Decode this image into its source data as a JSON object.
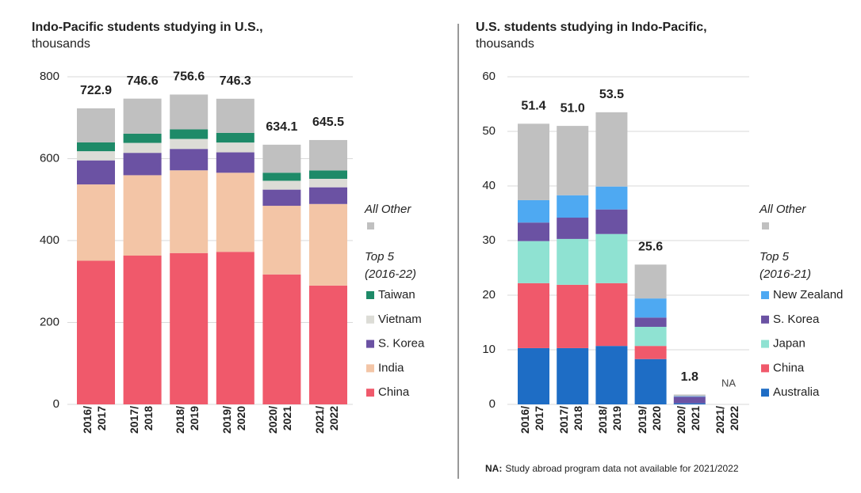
{
  "chart_data": [
    {
      "type": "bar",
      "stacked": true,
      "grid": true,
      "title": "Indo-Pacific students studying in U.S.,",
      "subtitle": "thousands",
      "categories": [
        "2016/\n2017",
        "2017/\n2018",
        "2018/\n2019",
        "2019/\n2020",
        "2020/\n2021",
        "2021/\n2022"
      ],
      "ylim": [
        0,
        800
      ],
      "yticks": [
        0,
        200,
        400,
        600,
        800
      ],
      "legend_title": [
        "Top 5",
        "(2016-22)"
      ],
      "series": [
        {
          "name": "China",
          "color": "#f0596b",
          "values": [
            350.8,
            363.3,
            369.5,
            372.5,
            317.3,
            290.1
          ]
        },
        {
          "name": "India",
          "color": "#f3c5a6",
          "values": [
            186.3,
            196.3,
            202.0,
            193.1,
            167.6,
            199.2
          ]
        },
        {
          "name": "S. Korea",
          "color": "#6b52a3",
          "values": [
            58.7,
            54.6,
            52.3,
            49.8,
            39.5,
            40.8
          ]
        },
        {
          "name": "Vietnam",
          "color": "#dcdcd6",
          "values": [
            22.4,
            24.3,
            24.4,
            24.0,
            21.6,
            20.7
          ]
        },
        {
          "name": "Taiwan",
          "color": "#1e8a68",
          "values": [
            21.5,
            22.5,
            23.4,
            23.7,
            19.7,
            20.5
          ]
        },
        {
          "name": "All Other",
          "color": "#c0c0c0",
          "values": [
            83.2,
            85.6,
            85.0,
            83.2,
            68.4,
            74.2
          ]
        }
      ],
      "totals": [
        722.9,
        746.6,
        756.6,
        746.3,
        634.1,
        645.5
      ]
    },
    {
      "type": "bar",
      "stacked": true,
      "grid": true,
      "title": "U.S. students studying in Indo-Pacific,",
      "subtitle": "thousands",
      "categories": [
        "2016/\n2017",
        "2017/\n2018",
        "2018/\n2019",
        "2019/\n2020",
        "2020/\n2021",
        "2021/\n2022"
      ],
      "ylim": [
        0,
        60
      ],
      "yticks": [
        0,
        10,
        20,
        30,
        40,
        50,
        60
      ],
      "legend_title": [
        "Top 5",
        "(2016-21)"
      ],
      "series": [
        {
          "name": "Australia",
          "color": "#1e6dc5",
          "values": [
            10.3,
            10.3,
            10.7,
            8.3,
            0.2,
            null
          ]
        },
        {
          "name": "China",
          "color": "#f0596b",
          "values": [
            11.9,
            11.6,
            11.5,
            2.4,
            0.0,
            null
          ]
        },
        {
          "name": "Japan",
          "color": "#8fe2d2",
          "values": [
            7.7,
            8.4,
            9.0,
            3.5,
            0.0,
            null
          ]
        },
        {
          "name": "S. Korea",
          "color": "#6b52a3",
          "values": [
            3.4,
            3.9,
            4.5,
            1.7,
            1.2,
            null
          ]
        },
        {
          "name": "New Zealand",
          "color": "#4ea9f2",
          "values": [
            4.1,
            4.1,
            4.2,
            3.5,
            0.1,
            null
          ]
        },
        {
          "name": "All Other",
          "color": "#c0c0c0",
          "values": [
            14.0,
            12.7,
            13.6,
            6.2,
            0.3,
            null
          ]
        }
      ],
      "totals": [
        51.4,
        51.0,
        53.5,
        25.6,
        1.8,
        null
      ],
      "value_labels": [
        "51.4",
        "51.0",
        "53.5",
        "25.6",
        "1.8",
        "NA"
      ],
      "note_label": "NA:",
      "note": "Study abroad program data not available for 2021/2022"
    }
  ]
}
